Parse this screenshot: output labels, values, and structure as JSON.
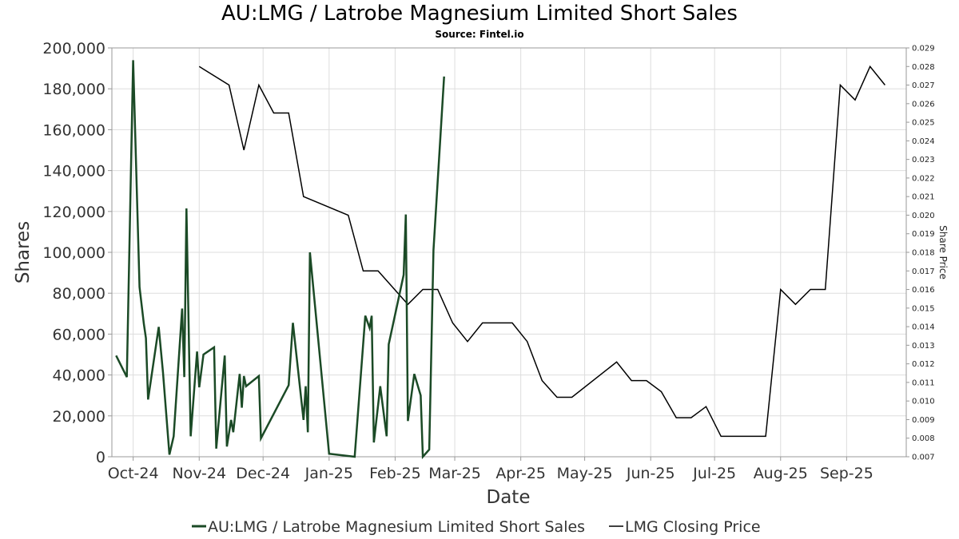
{
  "title": "AU:LMG / Latrobe Magnesium Limited Short Sales",
  "subtitle": "Source: Fintel.io",
  "colors": {
    "short": "#1b4a26",
    "price": "#000000",
    "grid": "#dddddd",
    "border": "#999999"
  },
  "chart_data": {
    "type": "line",
    "xlabel": "Date",
    "ylabel": "Shares",
    "y2label": "Share Price",
    "ylim": [
      0,
      200000
    ],
    "y2lim": [
      0.007,
      0.029
    ],
    "xlim": [
      "2024-09-21",
      "2025-09-29"
    ],
    "grid": true,
    "legend_position": "bottom",
    "x_ticks": [
      {
        "date": "2024-10-01",
        "label": "Oct-24"
      },
      {
        "date": "2024-11-01",
        "label": "Nov-24"
      },
      {
        "date": "2024-12-01",
        "label": "Dec-24"
      },
      {
        "date": "2025-01-01",
        "label": "Jan-25"
      },
      {
        "date": "2025-02-01",
        "label": "Feb-25"
      },
      {
        "date": "2025-03-01",
        "label": "Mar-25"
      },
      {
        "date": "2025-04-01",
        "label": "Apr-25"
      },
      {
        "date": "2025-05-01",
        "label": "May-25"
      },
      {
        "date": "2025-06-01",
        "label": "Jun-25"
      },
      {
        "date": "2025-07-01",
        "label": "Jul-25"
      },
      {
        "date": "2025-08-01",
        "label": "Aug-25"
      },
      {
        "date": "2025-09-01",
        "label": "Sep-25"
      }
    ],
    "y_ticks": [
      "0",
      "20,000",
      "40,000",
      "60,000",
      "80,000",
      "100,000",
      "120,000",
      "140,000",
      "160,000",
      "180,000",
      "200,000"
    ],
    "y2_ticks": [
      {
        "value": 0.007,
        "label": "0.007"
      },
      {
        "value": 0.008,
        "label": "0.008"
      },
      {
        "value": 0.009,
        "label": "0.009"
      },
      {
        "value": 0.01,
        "label": "0.010"
      },
      {
        "value": 0.011,
        "label": "0.011"
      },
      {
        "value": 0.012,
        "label": "0.012"
      },
      {
        "value": 0.013,
        "label": "0.013"
      },
      {
        "value": 0.014,
        "label": "0.014"
      },
      {
        "value": 0.015,
        "label": "0.015"
      },
      {
        "value": 0.016,
        "label": "0.016"
      },
      {
        "value": 0.017,
        "label": "0.017"
      },
      {
        "value": 0.018,
        "label": "0.018"
      },
      {
        "value": 0.019,
        "label": "0.019"
      },
      {
        "value": 0.02,
        "label": "0.020"
      },
      {
        "value": 0.021,
        "label": "0.021"
      },
      {
        "value": 0.022,
        "label": "0.022"
      },
      {
        "value": 0.023,
        "label": "0.023"
      },
      {
        "value": 0.024,
        "label": "0.024"
      },
      {
        "value": 0.025,
        "label": "0.025"
      },
      {
        "value": 0.026,
        "label": "0.026"
      },
      {
        "value": 0.027,
        "label": "0.027"
      },
      {
        "value": 0.028,
        "label": "0.028"
      },
      {
        "value": 0.029,
        "label": "0.029"
      }
    ],
    "series": [
      {
        "name": "AU:LMG / Latrobe Magnesium Limited Short Sales",
        "axis": "left",
        "points": [
          [
            "2024-09-23",
            49500
          ],
          [
            "2024-09-28",
            39000
          ],
          [
            "2024-10-01",
            194000
          ],
          [
            "2024-10-04",
            83000
          ],
          [
            "2024-10-06",
            65000
          ],
          [
            "2024-10-07",
            58000
          ],
          [
            "2024-10-08",
            28000
          ],
          [
            "2024-10-13",
            63500
          ],
          [
            "2024-10-15",
            41000
          ],
          [
            "2024-10-18",
            1000
          ],
          [
            "2024-10-20",
            10000
          ],
          [
            "2024-10-24",
            72500
          ],
          [
            "2024-10-25",
            39000
          ],
          [
            "2024-10-26",
            121500
          ],
          [
            "2024-10-28",
            10000
          ],
          [
            "2024-10-31",
            51500
          ],
          [
            "2024-11-01",
            34000
          ],
          [
            "2024-11-03",
            50000
          ],
          [
            "2024-11-08",
            53500
          ],
          [
            "2024-11-09",
            4000
          ],
          [
            "2024-11-13",
            49500
          ],
          [
            "2024-11-14",
            5000
          ],
          [
            "2024-11-16",
            18000
          ],
          [
            "2024-11-17",
            12000
          ],
          [
            "2024-11-20",
            40500
          ],
          [
            "2024-11-21",
            24000
          ],
          [
            "2024-11-22",
            39500
          ],
          [
            "2024-11-23",
            34500
          ],
          [
            "2024-11-29",
            39500
          ],
          [
            "2024-11-30",
            9000
          ],
          [
            "2024-12-13",
            35000
          ],
          [
            "2024-12-15",
            65500
          ],
          [
            "2024-12-20",
            18000
          ],
          [
            "2024-12-21",
            34500
          ],
          [
            "2024-12-22",
            12000
          ],
          [
            "2024-12-23",
            100000
          ],
          [
            "2025-01-01",
            1500
          ],
          [
            "2025-01-13",
            0
          ],
          [
            "2025-01-18",
            69000
          ],
          [
            "2025-01-20",
            63000
          ],
          [
            "2025-01-21",
            69000
          ],
          [
            "2025-01-22",
            7000
          ],
          [
            "2025-01-25",
            34500
          ],
          [
            "2025-01-28",
            10000
          ],
          [
            "2025-01-29",
            55000
          ],
          [
            "2025-02-05",
            89000
          ],
          [
            "2025-02-06",
            118500
          ],
          [
            "2025-02-07",
            17500
          ],
          [
            "2025-02-10",
            40500
          ],
          [
            "2025-02-13",
            30000
          ],
          [
            "2025-02-14",
            0
          ],
          [
            "2025-02-17",
            3500
          ],
          [
            "2025-02-19",
            101000
          ],
          [
            "2025-02-24",
            186000
          ]
        ]
      },
      {
        "name": "LMG Closing Price",
        "axis": "right",
        "points": [
          [
            "2024-11-01",
            0.028
          ],
          [
            "2024-11-15",
            0.027
          ],
          [
            "2024-11-22",
            0.0235
          ],
          [
            "2024-11-29",
            0.027
          ],
          [
            "2024-12-06",
            0.0255
          ],
          [
            "2024-12-13",
            0.0255
          ],
          [
            "2024-12-20",
            0.021
          ],
          [
            "2025-01-10",
            0.02
          ],
          [
            "2025-01-17",
            0.017
          ],
          [
            "2025-01-24",
            0.017
          ],
          [
            "2025-02-07",
            0.0152
          ],
          [
            "2025-02-14",
            0.016
          ],
          [
            "2025-02-21",
            0.016
          ],
          [
            "2025-02-28",
            0.0142
          ],
          [
            "2025-03-07",
            0.0132
          ],
          [
            "2025-03-14",
            0.0142
          ],
          [
            "2025-03-28",
            0.0142
          ],
          [
            "2025-04-04",
            0.0132
          ],
          [
            "2025-04-11",
            0.0111
          ],
          [
            "2025-04-18",
            0.0102
          ],
          [
            "2025-04-25",
            0.0102
          ],
          [
            "2025-05-16",
            0.0121
          ],
          [
            "2025-05-23",
            0.0111
          ],
          [
            "2025-05-30",
            0.0111
          ],
          [
            "2025-06-06",
            0.0105
          ],
          [
            "2025-06-13",
            0.0091
          ],
          [
            "2025-06-20",
            0.0091
          ],
          [
            "2025-06-27",
            0.0097
          ],
          [
            "2025-07-04",
            0.0081
          ],
          [
            "2025-07-25",
            0.0081
          ],
          [
            "2025-08-01",
            0.016
          ],
          [
            "2025-08-08",
            0.0152
          ],
          [
            "2025-08-15",
            0.016
          ],
          [
            "2025-08-22",
            0.016
          ],
          [
            "2025-08-29",
            0.027
          ],
          [
            "2025-09-05",
            0.0262
          ],
          [
            "2025-09-12",
            0.028
          ],
          [
            "2025-09-19",
            0.027
          ]
        ]
      }
    ]
  }
}
